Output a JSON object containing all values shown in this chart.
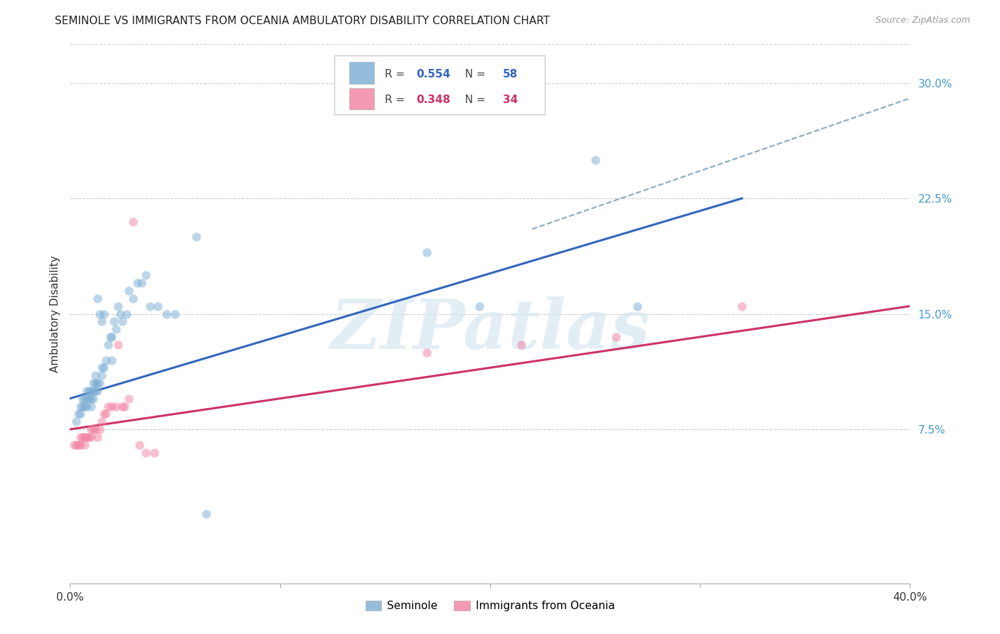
{
  "title": "SEMINOLE VS IMMIGRANTS FROM OCEANIA AMBULATORY DISABILITY CORRELATION CHART",
  "source": "Source: ZipAtlas.com",
  "ylabel": "Ambulatory Disability",
  "xlim": [
    0.0,
    0.4
  ],
  "ylim": [
    -0.025,
    0.325
  ],
  "yticks": [
    0.075,
    0.15,
    0.225,
    0.3
  ],
  "ytick_labels": [
    "7.5%",
    "15.0%",
    "22.5%",
    "30.0%"
  ],
  "xticks": [
    0.0,
    0.1,
    0.2,
    0.3,
    0.4
  ],
  "xtick_labels": [
    "0.0%",
    "",
    "",
    "",
    "40.0%"
  ],
  "background_color": "#ffffff",
  "grid_color": "#cccccc",
  "blue_color": "#7aadd4",
  "pink_color": "#f080a0",
  "blue_line_color": "#3366bb",
  "pink_line_color": "#cc3366",
  "dashed_line_color": "#88aabb",
  "blue_label_color": "#3366bb",
  "pink_label_color": "#cc3366",
  "tick_label_color": "#4499cc",
  "R_blue": "0.554",
  "N_blue": "58",
  "R_pink": "0.348",
  "N_pink": "34",
  "legend_label_blue": "Seminole",
  "legend_label_pink": "Immigrants from Oceania",
  "blue_scatter_x": [
    0.003,
    0.004,
    0.005,
    0.005,
    0.006,
    0.006,
    0.007,
    0.007,
    0.008,
    0.008,
    0.008,
    0.009,
    0.009,
    0.01,
    0.01,
    0.01,
    0.011,
    0.011,
    0.011,
    0.012,
    0.012,
    0.012,
    0.013,
    0.013,
    0.013,
    0.014,
    0.014,
    0.015,
    0.015,
    0.015,
    0.016,
    0.016,
    0.017,
    0.018,
    0.019,
    0.02,
    0.02,
    0.021,
    0.022,
    0.023,
    0.024,
    0.025,
    0.027,
    0.028,
    0.03,
    0.032,
    0.034,
    0.036,
    0.038,
    0.042,
    0.046,
    0.05,
    0.06,
    0.065,
    0.17,
    0.195,
    0.25,
    0.27
  ],
  "blue_scatter_y": [
    0.08,
    0.085,
    0.085,
    0.09,
    0.09,
    0.095,
    0.09,
    0.095,
    0.09,
    0.095,
    0.1,
    0.095,
    0.1,
    0.09,
    0.095,
    0.1,
    0.095,
    0.1,
    0.105,
    0.1,
    0.105,
    0.11,
    0.1,
    0.105,
    0.16,
    0.105,
    0.15,
    0.11,
    0.115,
    0.145,
    0.115,
    0.15,
    0.12,
    0.13,
    0.135,
    0.12,
    0.135,
    0.145,
    0.14,
    0.155,
    0.15,
    0.145,
    0.15,
    0.165,
    0.16,
    0.17,
    0.17,
    0.175,
    0.155,
    0.155,
    0.15,
    0.15,
    0.2,
    0.02,
    0.19,
    0.155,
    0.25,
    0.155
  ],
  "pink_scatter_x": [
    0.002,
    0.003,
    0.004,
    0.005,
    0.005,
    0.006,
    0.007,
    0.007,
    0.008,
    0.009,
    0.01,
    0.01,
    0.011,
    0.012,
    0.013,
    0.014,
    0.015,
    0.016,
    0.017,
    0.018,
    0.02,
    0.022,
    0.023,
    0.025,
    0.026,
    0.028,
    0.03,
    0.033,
    0.036,
    0.04,
    0.17,
    0.215,
    0.26,
    0.32
  ],
  "pink_scatter_y": [
    0.065,
    0.065,
    0.065,
    0.065,
    0.07,
    0.07,
    0.065,
    0.07,
    0.07,
    0.07,
    0.07,
    0.075,
    0.075,
    0.075,
    0.07,
    0.075,
    0.08,
    0.085,
    0.085,
    0.09,
    0.09,
    0.09,
    0.13,
    0.09,
    0.09,
    0.095,
    0.21,
    0.065,
    0.06,
    0.06,
    0.125,
    0.13,
    0.135,
    0.155
  ],
  "blue_line_x": [
    0.0,
    0.32
  ],
  "blue_line_y": [
    0.095,
    0.225
  ],
  "pink_line_x": [
    0.0,
    0.4
  ],
  "pink_line_y": [
    0.075,
    0.155
  ],
  "dashed_line_x": [
    0.22,
    0.4
  ],
  "dashed_line_y": [
    0.205,
    0.29
  ],
  "watermark_text": "ZIPatlas",
  "title_fontsize": 11,
  "axis_label_fontsize": 11,
  "tick_fontsize": 11,
  "scatter_size": 80,
  "scatter_alpha": 0.5,
  "line_width": 2.2
}
